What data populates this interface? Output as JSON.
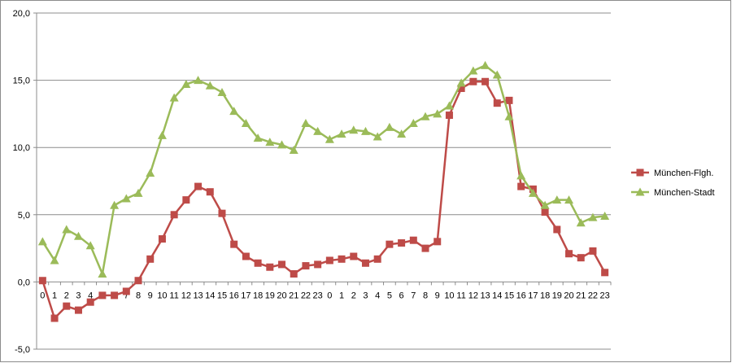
{
  "chart_data": {
    "type": "line",
    "categories": [
      "0",
      "1",
      "2",
      "3",
      "4",
      "5",
      "6",
      "7",
      "8",
      "9",
      "10",
      "11",
      "12",
      "13",
      "14",
      "15",
      "16",
      "17",
      "18",
      "19",
      "20",
      "21",
      "22",
      "23",
      "0",
      "1",
      "2",
      "3",
      "4",
      "5",
      "6",
      "7",
      "8",
      "9",
      "10",
      "11",
      "12",
      "13",
      "14",
      "15",
      "16",
      "17",
      "18",
      "19",
      "20",
      "21",
      "22",
      "23"
    ],
    "y_tick_labels": [
      "-5,0",
      "0,0",
      "5,0",
      "10,0",
      "15,0",
      "20,0"
    ],
    "y_ticks": [
      -5,
      0,
      5,
      10,
      15,
      20
    ],
    "ylim": [
      -5,
      20
    ],
    "grid": true,
    "legend_position": "right",
    "series": [
      {
        "name": "München-Flgh.",
        "color": "#be4b48",
        "marker": "square",
        "values": [
          0.1,
          -2.7,
          -1.8,
          -2.1,
          -1.5,
          -1.0,
          -1.0,
          -0.7,
          0.1,
          1.7,
          3.2,
          5.0,
          6.1,
          7.1,
          6.7,
          5.1,
          2.8,
          1.9,
          1.4,
          1.1,
          1.3,
          0.6,
          1.2,
          1.3,
          1.6,
          1.7,
          1.9,
          1.4,
          1.7,
          2.8,
          2.9,
          3.1,
          2.5,
          3.0,
          12.4,
          14.4,
          14.9,
          14.9,
          13.3,
          13.5,
          7.1,
          6.9,
          5.2,
          3.9,
          2.1,
          1.8,
          2.3,
          0.7
        ]
      },
      {
        "name": "München-Stadt",
        "color": "#9bbb59",
        "marker": "triangle",
        "values": [
          3.0,
          1.6,
          3.9,
          3.4,
          2.7,
          0.6,
          5.7,
          6.2,
          6.6,
          8.1,
          10.9,
          13.7,
          14.7,
          15.0,
          14.6,
          14.1,
          12.7,
          11.8,
          10.7,
          10.4,
          10.2,
          9.8,
          11.8,
          11.2,
          10.6,
          11.0,
          11.3,
          11.2,
          10.8,
          11.5,
          11.0,
          11.8,
          12.3,
          12.5,
          13.1,
          14.8,
          15.7,
          16.1,
          15.4,
          12.3,
          7.9,
          6.6,
          5.7,
          6.1,
          6.1,
          4.4,
          4.8,
          4.9
        ]
      }
    ]
  }
}
